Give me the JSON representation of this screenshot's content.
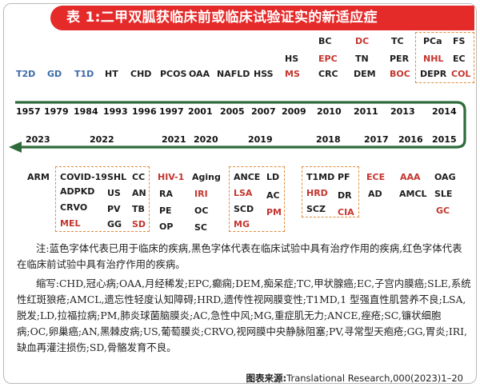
{
  "title": "表 1:二甲双胍获临床前或临床试验证实的新适应症",
  "top_years": [
    "1957",
    "1979",
    "1984",
    "1993",
    "1996",
    "1997",
    "2001",
    "2005",
    "2007",
    "2009",
    "2010",
    "2011",
    "2013",
    "2014"
  ],
  "bottom_years": [
    "2023",
    "2022",
    "2021",
    "2020",
    "2019",
    "2018",
    "2017",
    "2016",
    "2015"
  ],
  "top_items": {
    "1957": [
      {
        "t": "T2D",
        "c": "blue"
      }
    ],
    "1979": [
      {
        "t": "GD",
        "c": "blue"
      }
    ],
    "1984": [
      {
        "t": "T1D",
        "c": "blue"
      }
    ],
    "1993": [
      {
        "t": "HT",
        "c": "black"
      }
    ],
    "1996": [
      {
        "t": "CHD",
        "c": "black"
      }
    ],
    "1997": [
      {
        "t": "PCOS",
        "c": "black"
      }
    ],
    "2001": [
      {
        "t": "OAA",
        "c": "black"
      }
    ],
    "2005": [
      {
        "t": "NAFLD",
        "c": "black"
      }
    ],
    "2007": [
      {
        "t": "HSS",
        "c": "black"
      }
    ],
    "2009a": [
      {
        "t": "HS",
        "c": "black"
      }
    ],
    "2009b": [
      {
        "t": "MS",
        "c": "red"
      }
    ],
    "2010a": [
      {
        "t": "BC",
        "c": "black"
      }
    ],
    "2010b": [
      {
        "t": "EPC",
        "c": "red"
      }
    ],
    "2010c": [
      {
        "t": "CRC",
        "c": "black"
      }
    ],
    "2011a": [
      {
        "t": "DC",
        "c": "red"
      }
    ],
    "2011b": [
      {
        "t": "TN",
        "c": "black"
      }
    ],
    "2011c": [
      {
        "t": "DEM",
        "c": "black"
      }
    ],
    "2013a": [
      {
        "t": "TC",
        "c": "black"
      }
    ],
    "2013b": [
      {
        "t": "PER",
        "c": "black"
      }
    ],
    "2013c": [
      {
        "t": "BOC",
        "c": "red"
      }
    ],
    "2014a1": [
      {
        "t": "PCa",
        "c": "black"
      }
    ],
    "2014a2": [
      {
        "t": "FS",
        "c": "black"
      }
    ],
    "2014b1": [
      {
        "t": "NHL",
        "c": "red"
      }
    ],
    "2014b2": [
      {
        "t": "EC",
        "c": "black"
      }
    ],
    "2014c1": [
      {
        "t": "DEPR",
        "c": "black"
      }
    ],
    "2014c2": [
      {
        "t": "COL",
        "c": "red"
      }
    ]
  },
  "bottom_items": {
    "arm": "ARM",
    "y2022_col1": [
      "COVID-19",
      "ADPKD",
      "CRVO",
      "MEL"
    ],
    "y2022_col2": [
      "SHL",
      "US",
      "PV",
      "GG"
    ],
    "y2022_col3": [
      "CC",
      "AN",
      "TB",
      "SD"
    ],
    "y2021": [
      "HIV-1",
      "RA",
      "PE",
      "OP"
    ],
    "y2020": [
      "Aging",
      "IRI",
      "OC",
      "SC"
    ],
    "y2019_col1": [
      "ANCE",
      "LSA",
      "SCD",
      "MG"
    ],
    "y2019_col2": [
      "LD",
      "AC",
      "PM"
    ],
    "y2018_col1": [
      "T1MD",
      "HRD",
      "SCZ"
    ],
    "y2018_col2": [
      "PF",
      "DR",
      "CIA"
    ],
    "y2017": [
      "ECE",
      "AD"
    ],
    "y2016": [
      "AAA",
      "AMCL"
    ],
    "y2015": [
      "OAG",
      "SLE",
      "GC"
    ]
  },
  "note1": "注:蓝色字体代表已用于临床的疾病,黑色字体代表在临床试验中具有治疗作用的疾病,红色字体代表在临床前试验中具有治疗作用的疾病。",
  "note2": "缩写:CHD,冠心病;OAA,月经稀发;EPC,癫痫;DEM,痴呆症;TC,甲状腺癌;EC,子宫内膜癌;SLE,系统性红斑狼疮;AMCL,遗忘性轻度认知障碍;HRD,遗传性视网膜变性;T1MD,1 型强直性肌营养不良;LSA,脱发;LD,拉福拉病;PM,肺炎球菌脑膜炎;AC,急性中风;MG,重症肌无力;ANCE,痤疮;SC,镰状细胞病;OC,卵巢癌;AN,黑棘皮病;US,葡萄膜炎;CRVO,视网膜中央静脉阻塞;PV,寻常型天疱疮;GG,胃炎;IRI,缺血再灌注损伤;SD,骨骼发育不良。",
  "source_label": "图表来源:",
  "source_text": "Translational Research,000(2023)1–20",
  "colors": {
    "blue": "#3a6aa9",
    "red": "#c4352e",
    "black": "#1e1e1e",
    "arrow": "#2f6b3a",
    "banner": "#e52a2a",
    "box": "#e08a3a"
  }
}
